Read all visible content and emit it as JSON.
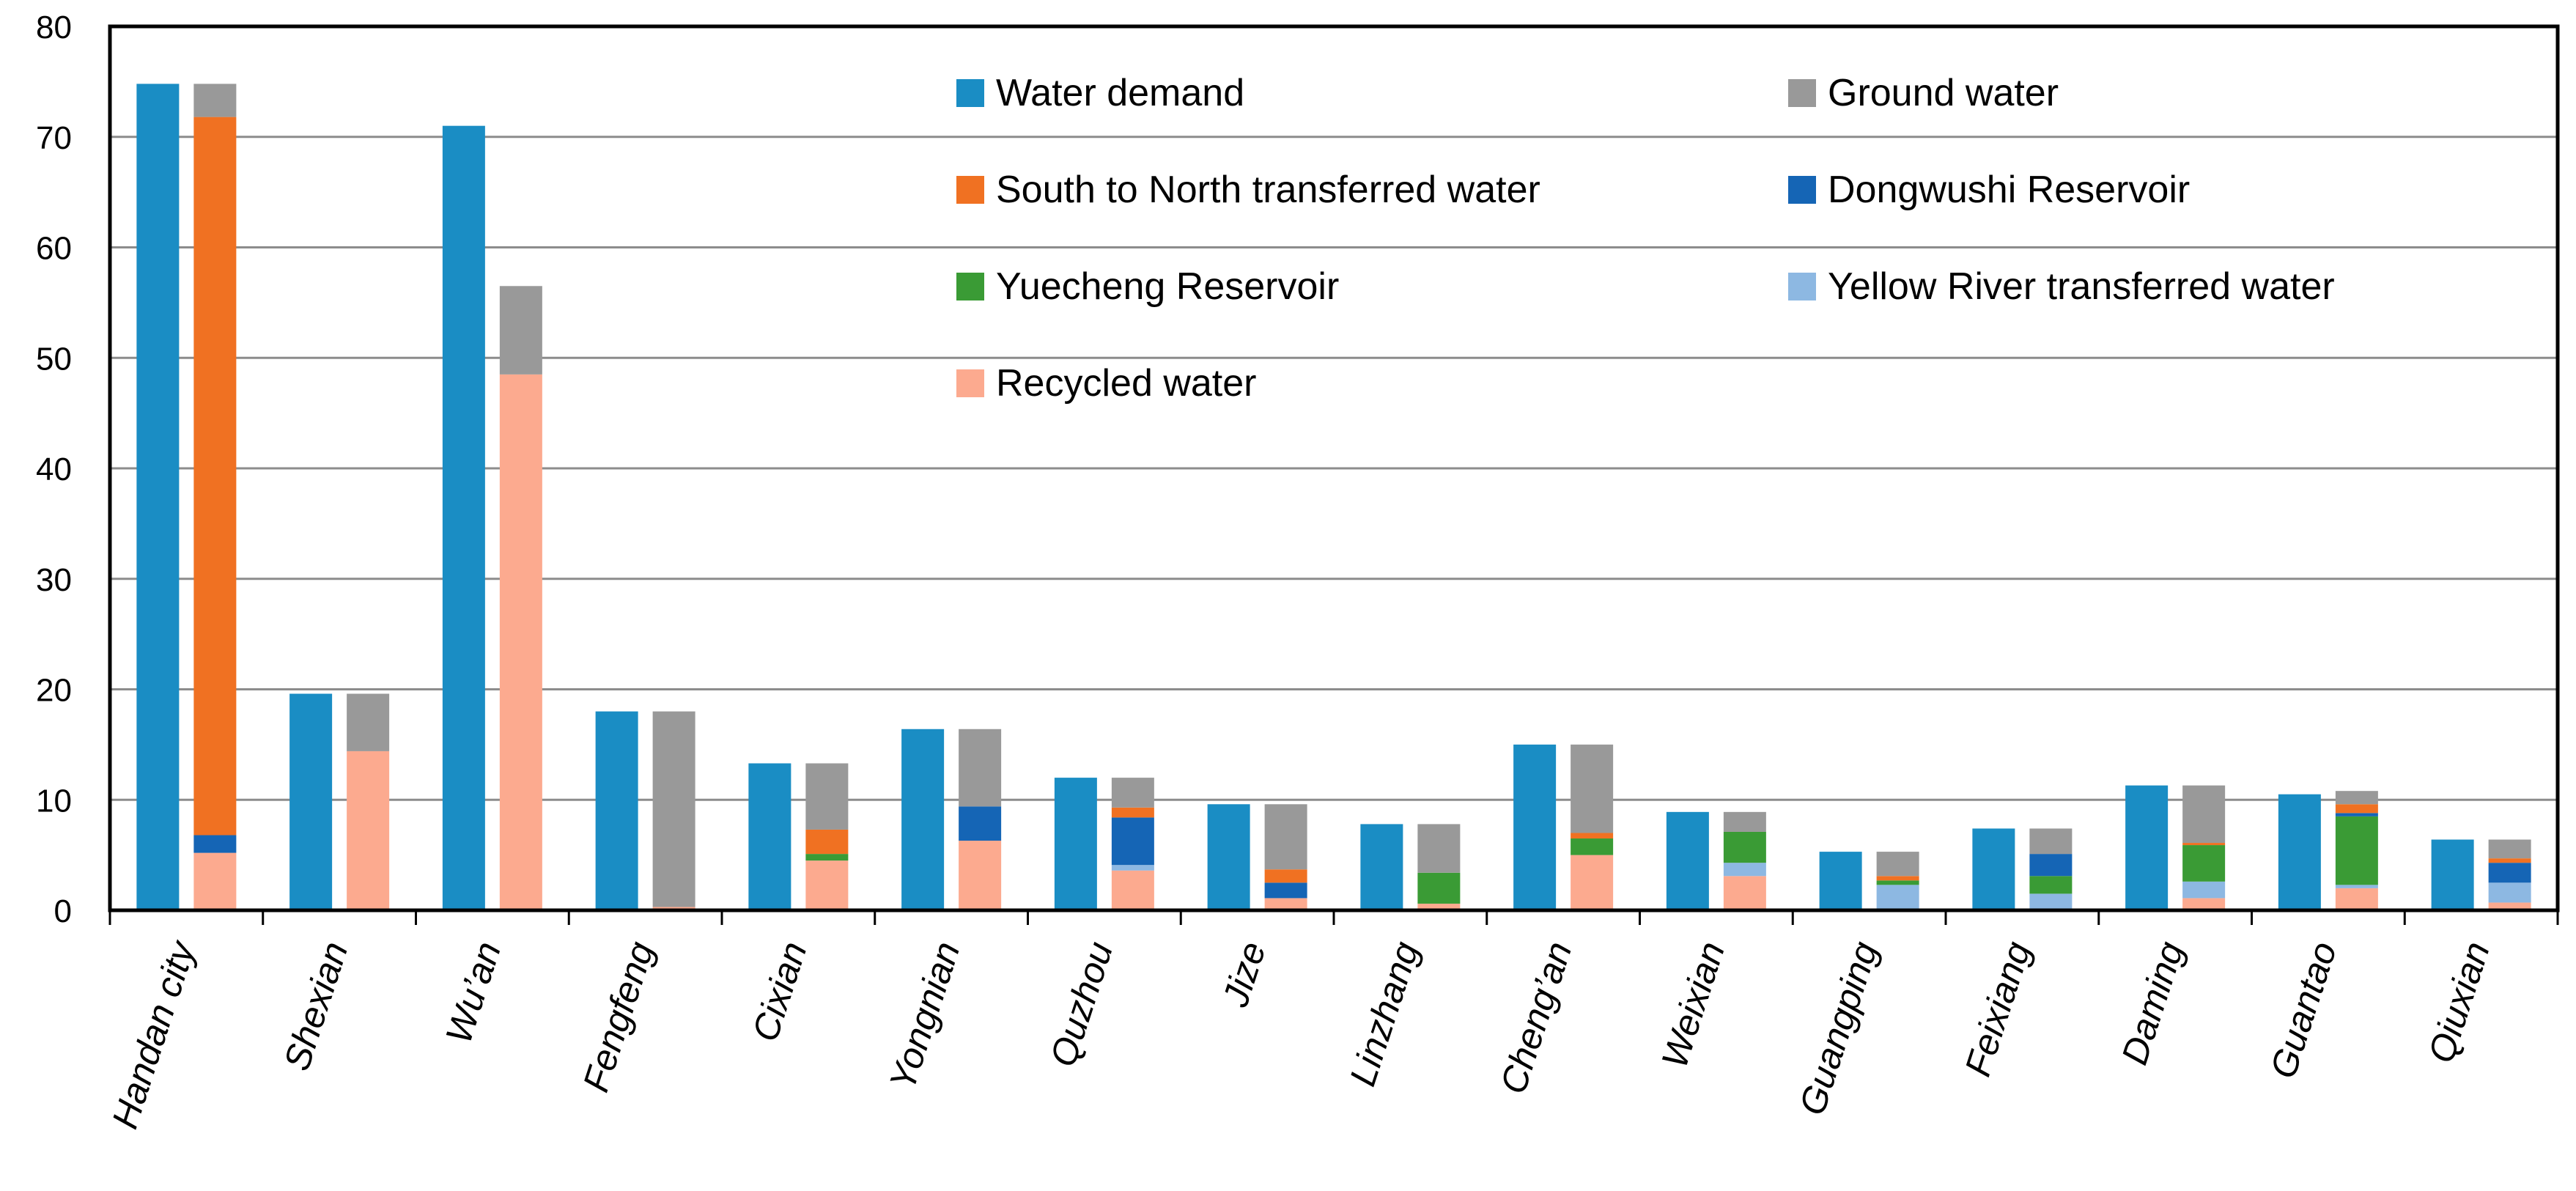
{
  "chart_data": {
    "type": "bar",
    "title": "",
    "xlabel": "",
    "ylabel": "",
    "ylim": [
      0,
      80
    ],
    "yticks": [
      0,
      10,
      20,
      30,
      40,
      50,
      60,
      70,
      80
    ],
    "grid": true,
    "legend_position": "top-right",
    "categories": [
      "Handan city",
      "Shexian",
      "Wu’an",
      "Fengfeng",
      "Cixian",
      "Yongnian",
      "Quzhou",
      "Jize",
      "Linzhang",
      "Cheng’an",
      "Weixian",
      "Guangping",
      "Feixiang",
      "Daming",
      "Guantao",
      "Qiuxian"
    ],
    "demand_series": {
      "name": "Water demand",
      "color": "#1A8DC4",
      "values": [
        74.8,
        19.6,
        71.0,
        18.0,
        13.3,
        16.4,
        12.0,
        9.6,
        7.8,
        15.0,
        8.9,
        5.3,
        7.4,
        11.3,
        10.5,
        6.4
      ]
    },
    "supply_stack_order": [
      "Recycled water",
      "Yellow River  transferred water",
      "Yuecheng Reservoir",
      "Dongwushi Reservoir",
      "South to North  transferred water",
      "Ground water"
    ],
    "supply_series": [
      {
        "name": "Recycled water",
        "color": "#FCAA8F",
        "values": [
          5.2,
          14.4,
          48.5,
          0.3,
          4.5,
          6.3,
          3.6,
          1.1,
          0.6,
          5.0,
          3.1,
          0.0,
          0.0,
          1.1,
          2.0,
          0.7
        ]
      },
      {
        "name": "Yellow River  transferred water",
        "color": "#8DB8E2",
        "values": [
          0.0,
          0.0,
          0.0,
          0.0,
          0.0,
          0.0,
          0.5,
          0.0,
          0.0,
          0.0,
          1.2,
          2.3,
          1.5,
          1.5,
          0.3,
          1.8
        ]
      },
      {
        "name": "Yuecheng Reservoir",
        "color": "#3A9B35",
        "values": [
          0.0,
          0.0,
          0.0,
          0.0,
          0.6,
          0.0,
          0.0,
          0.0,
          2.8,
          1.5,
          2.8,
          0.4,
          1.6,
          3.3,
          6.2,
          0.0
        ]
      },
      {
        "name": "Dongwushi Reservoir",
        "color": "#1565B5",
        "values": [
          1.6,
          0.0,
          0.0,
          0.0,
          0.0,
          3.1,
          4.3,
          1.4,
          0.0,
          0.0,
          0.0,
          0.0,
          2.0,
          0.0,
          0.3,
          1.8
        ]
      },
      {
        "name": "South to North  transferred water",
        "color": "#F07122",
        "values": [
          65.0,
          0.0,
          0.0,
          0.0,
          2.2,
          0.0,
          0.9,
          1.2,
          0.0,
          0.5,
          0.0,
          0.4,
          0.0,
          0.2,
          0.8,
          0.4
        ]
      },
      {
        "name": "Ground water",
        "color": "#999999",
        "values": [
          3.0,
          5.2,
          8.0,
          17.7,
          6.0,
          7.0,
          2.7,
          5.9,
          4.4,
          8.0,
          1.8,
          2.2,
          2.3,
          5.2,
          1.2,
          1.7
        ]
      }
    ],
    "legend": [
      {
        "label": "Water demand",
        "color": "#1A8DC4"
      },
      {
        "label": "Ground water",
        "color": "#999999"
      },
      {
        "label": "South to North  transferred water",
        "color": "#F07122"
      },
      {
        "label": "Dongwushi Reservoir",
        "color": "#1565B5"
      },
      {
        "label": "Yuecheng Reservoir",
        "color": "#3A9B35"
      },
      {
        "label": "Yellow River  transferred water",
        "color": "#8DB8E2"
      },
      {
        "label": "Recycled water",
        "color": "#FCAA8F"
      }
    ]
  }
}
